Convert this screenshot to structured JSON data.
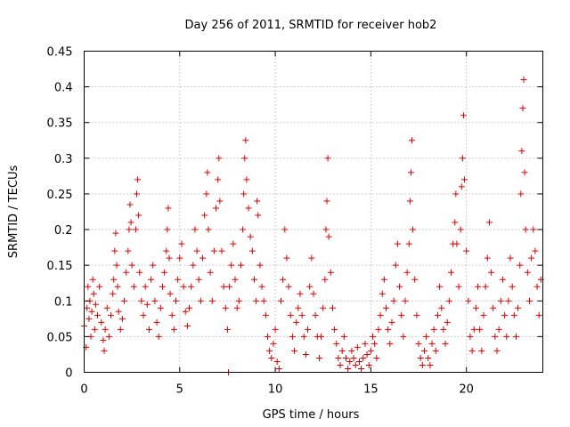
{
  "chart_data": {
    "type": "scatter",
    "title": "Day 256 of 2011, SRMTID for receiver hob2",
    "xlabel": "GPS time / hours",
    "ylabel": "SRMTID / TECUs",
    "xlim": [
      0,
      24
    ],
    "ylim": [
      0,
      0.45
    ],
    "xticks": [
      0,
      5,
      10,
      15,
      20
    ],
    "xtick_labels": [
      "0",
      "5",
      "10",
      "15",
      "20"
    ],
    "yticks": [
      0,
      0.05,
      0.1,
      0.15,
      0.2,
      0.25,
      0.3,
      0.35,
      0.4,
      0.45
    ],
    "ytick_labels": [
      "0",
      "0.05",
      "0.1",
      "0.15",
      "0.2",
      "0.25",
      "0.3",
      "0.35",
      "0.4",
      "0.45"
    ],
    "grid": true,
    "marker": "+",
    "color": "#dd0000",
    "series": [
      {
        "name": "SRMTID",
        "points": [
          [
            0.0,
            0.065
          ],
          [
            0.1,
            0.035
          ],
          [
            0.15,
            0.09
          ],
          [
            0.2,
            0.12
          ],
          [
            0.25,
            0.075
          ],
          [
            0.3,
            0.1
          ],
          [
            0.35,
            0.05
          ],
          [
            0.4,
            0.085
          ],
          [
            0.45,
            0.13
          ],
          [
            0.5,
            0.11
          ],
          [
            0.55,
            0.06
          ],
          [
            0.6,
            0.095
          ],
          [
            0.7,
            0.08
          ],
          [
            0.8,
            0.12
          ],
          [
            0.9,
            0.07
          ],
          [
            1.0,
            0.045
          ],
          [
            1.05,
            0.03
          ],
          [
            1.1,
            0.06
          ],
          [
            1.2,
            0.09
          ],
          [
            1.3,
            0.05
          ],
          [
            1.4,
            0.08
          ],
          [
            1.5,
            0.11
          ],
          [
            1.55,
            0.13
          ],
          [
            1.6,
            0.17
          ],
          [
            1.65,
            0.195
          ],
          [
            1.7,
            0.15
          ],
          [
            1.75,
            0.12
          ],
          [
            1.8,
            0.085
          ],
          [
            1.9,
            0.06
          ],
          [
            2.0,
            0.075
          ],
          [
            2.1,
            0.1
          ],
          [
            2.2,
            0.14
          ],
          [
            2.3,
            0.17
          ],
          [
            2.35,
            0.2
          ],
          [
            2.4,
            0.235
          ],
          [
            2.45,
            0.21
          ],
          [
            2.5,
            0.15
          ],
          [
            2.6,
            0.12
          ],
          [
            2.7,
            0.2
          ],
          [
            2.75,
            0.25
          ],
          [
            2.8,
            0.27
          ],
          [
            2.85,
            0.22
          ],
          [
            2.9,
            0.14
          ],
          [
            3.0,
            0.1
          ],
          [
            3.1,
            0.08
          ],
          [
            3.2,
            0.12
          ],
          [
            3.3,
            0.095
          ],
          [
            3.4,
            0.06
          ],
          [
            3.5,
            0.13
          ],
          [
            3.6,
            0.15
          ],
          [
            3.7,
            0.1
          ],
          [
            3.8,
            0.07
          ],
          [
            3.9,
            0.05
          ],
          [
            4.0,
            0.09
          ],
          [
            4.1,
            0.12
          ],
          [
            4.2,
            0.14
          ],
          [
            4.3,
            0.17
          ],
          [
            4.35,
            0.2
          ],
          [
            4.4,
            0.23
          ],
          [
            4.45,
            0.16
          ],
          [
            4.5,
            0.11
          ],
          [
            4.6,
            0.08
          ],
          [
            4.7,
            0.06
          ],
          [
            4.8,
            0.1
          ],
          [
            4.9,
            0.13
          ],
          [
            5.0,
            0.16
          ],
          [
            5.1,
            0.18
          ],
          [
            5.2,
            0.12
          ],
          [
            5.3,
            0.085
          ],
          [
            5.4,
            0.065
          ],
          [
            5.5,
            0.09
          ],
          [
            5.6,
            0.12
          ],
          [
            5.7,
            0.15
          ],
          [
            5.8,
            0.2
          ],
          [
            5.9,
            0.17
          ],
          [
            6.0,
            0.13
          ],
          [
            6.1,
            0.1
          ],
          [
            6.2,
            0.16
          ],
          [
            6.3,
            0.22
          ],
          [
            6.4,
            0.25
          ],
          [
            6.45,
            0.28
          ],
          [
            6.5,
            0.2
          ],
          [
            6.6,
            0.14
          ],
          [
            6.7,
            0.1
          ],
          [
            6.8,
            0.17
          ],
          [
            6.9,
            0.23
          ],
          [
            7.0,
            0.27
          ],
          [
            7.05,
            0.3
          ],
          [
            7.1,
            0.24
          ],
          [
            7.2,
            0.17
          ],
          [
            7.3,
            0.12
          ],
          [
            7.4,
            0.09
          ],
          [
            7.5,
            0.06
          ],
          [
            7.55,
            0.0
          ],
          [
            7.6,
            0.12
          ],
          [
            7.7,
            0.15
          ],
          [
            7.8,
            0.18
          ],
          [
            7.9,
            0.13
          ],
          [
            8.0,
            0.09
          ],
          [
            8.1,
            0.1
          ],
          [
            8.2,
            0.15
          ],
          [
            8.3,
            0.2
          ],
          [
            8.35,
            0.25
          ],
          [
            8.4,
            0.3
          ],
          [
            8.45,
            0.325
          ],
          [
            8.5,
            0.27
          ],
          [
            8.6,
            0.23
          ],
          [
            8.7,
            0.19
          ],
          [
            8.8,
            0.17
          ],
          [
            8.9,
            0.13
          ],
          [
            9.0,
            0.1
          ],
          [
            9.05,
            0.24
          ],
          [
            9.1,
            0.22
          ],
          [
            9.2,
            0.15
          ],
          [
            9.3,
            0.12
          ],
          [
            9.4,
            0.1
          ],
          [
            9.5,
            0.08
          ],
          [
            9.6,
            0.05
          ],
          [
            9.7,
            0.03
          ],
          [
            9.8,
            0.02
          ],
          [
            9.9,
            0.04
          ],
          [
            10.0,
            0.06
          ],
          [
            10.1,
            0.015
          ],
          [
            10.2,
            0.005
          ],
          [
            10.3,
            0.1
          ],
          [
            10.4,
            0.13
          ],
          [
            10.5,
            0.2
          ],
          [
            10.6,
            0.16
          ],
          [
            10.7,
            0.12
          ],
          [
            10.8,
            0.08
          ],
          [
            10.9,
            0.05
          ],
          [
            11.0,
            0.03
          ],
          [
            11.1,
            0.07
          ],
          [
            11.2,
            0.09
          ],
          [
            11.3,
            0.11
          ],
          [
            11.4,
            0.08
          ],
          [
            11.5,
            0.05
          ],
          [
            11.6,
            0.025
          ],
          [
            11.7,
            0.06
          ],
          [
            11.8,
            0.12
          ],
          [
            11.9,
            0.16
          ],
          [
            12.0,
            0.11
          ],
          [
            12.1,
            0.08
          ],
          [
            12.2,
            0.05
          ],
          [
            12.3,
            0.02
          ],
          [
            12.4,
            0.05
          ],
          [
            12.5,
            0.09
          ],
          [
            12.6,
            0.13
          ],
          [
            12.65,
            0.2
          ],
          [
            12.7,
            0.24
          ],
          [
            12.75,
            0.3
          ],
          [
            12.8,
            0.19
          ],
          [
            12.9,
            0.14
          ],
          [
            13.0,
            0.09
          ],
          [
            13.1,
            0.06
          ],
          [
            13.2,
            0.04
          ],
          [
            13.3,
            0.02
          ],
          [
            13.4,
            0.01
          ],
          [
            13.5,
            0.03
          ],
          [
            13.6,
            0.05
          ],
          [
            13.7,
            0.02
          ],
          [
            13.8,
            0.005
          ],
          [
            13.9,
            0.015
          ],
          [
            14.0,
            0.03
          ],
          [
            14.1,
            0.02
          ],
          [
            14.2,
            0.01
          ],
          [
            14.3,
            0.035
          ],
          [
            14.4,
            0.015
          ],
          [
            14.5,
            0.005
          ],
          [
            14.6,
            0.02
          ],
          [
            14.7,
            0.04
          ],
          [
            14.8,
            0.025
          ],
          [
            14.9,
            0.01
          ],
          [
            15.0,
            0.03
          ],
          [
            15.1,
            0.05
          ],
          [
            15.2,
            0.04
          ],
          [
            15.3,
            0.02
          ],
          [
            15.4,
            0.06
          ],
          [
            15.5,
            0.08
          ],
          [
            15.6,
            0.11
          ],
          [
            15.7,
            0.13
          ],
          [
            15.8,
            0.09
          ],
          [
            15.9,
            0.06
          ],
          [
            16.0,
            0.04
          ],
          [
            16.1,
            0.07
          ],
          [
            16.2,
            0.1
          ],
          [
            16.3,
            0.15
          ],
          [
            16.4,
            0.18
          ],
          [
            16.5,
            0.12
          ],
          [
            16.6,
            0.08
          ],
          [
            16.7,
            0.05
          ],
          [
            16.8,
            0.1
          ],
          [
            16.9,
            0.14
          ],
          [
            17.0,
            0.18
          ],
          [
            17.05,
            0.24
          ],
          [
            17.1,
            0.28
          ],
          [
            17.15,
            0.325
          ],
          [
            17.2,
            0.2
          ],
          [
            17.3,
            0.13
          ],
          [
            17.4,
            0.08
          ],
          [
            17.5,
            0.04
          ],
          [
            17.6,
            0.02
          ],
          [
            17.7,
            0.01
          ],
          [
            17.8,
            0.03
          ],
          [
            17.9,
            0.05
          ],
          [
            18.0,
            0.02
          ],
          [
            18.1,
            0.01
          ],
          [
            18.2,
            0.04
          ],
          [
            18.3,
            0.06
          ],
          [
            18.4,
            0.03
          ],
          [
            18.5,
            0.08
          ],
          [
            18.6,
            0.12
          ],
          [
            18.7,
            0.09
          ],
          [
            18.8,
            0.06
          ],
          [
            18.9,
            0.04
          ],
          [
            19.0,
            0.07
          ],
          [
            19.1,
            0.1
          ],
          [
            19.2,
            0.14
          ],
          [
            19.3,
            0.18
          ],
          [
            19.4,
            0.21
          ],
          [
            19.45,
            0.25
          ],
          [
            19.5,
            0.18
          ],
          [
            19.6,
            0.12
          ],
          [
            19.7,
            0.2
          ],
          [
            19.75,
            0.26
          ],
          [
            19.8,
            0.3
          ],
          [
            19.85,
            0.36
          ],
          [
            19.9,
            0.27
          ],
          [
            20.0,
            0.17
          ],
          [
            20.1,
            0.1
          ],
          [
            20.2,
            0.05
          ],
          [
            20.3,
            0.03
          ],
          [
            20.4,
            0.06
          ],
          [
            20.5,
            0.09
          ],
          [
            20.6,
            0.12
          ],
          [
            20.7,
            0.06
          ],
          [
            20.8,
            0.03
          ],
          [
            20.9,
            0.08
          ],
          [
            21.0,
            0.12
          ],
          [
            21.1,
            0.16
          ],
          [
            21.2,
            0.21
          ],
          [
            21.3,
            0.14
          ],
          [
            21.4,
            0.09
          ],
          [
            21.5,
            0.05
          ],
          [
            21.6,
            0.03
          ],
          [
            21.7,
            0.06
          ],
          [
            21.8,
            0.1
          ],
          [
            21.9,
            0.13
          ],
          [
            22.0,
            0.08
          ],
          [
            22.1,
            0.05
          ],
          [
            22.2,
            0.1
          ],
          [
            22.3,
            0.16
          ],
          [
            22.4,
            0.12
          ],
          [
            22.5,
            0.08
          ],
          [
            22.6,
            0.05
          ],
          [
            22.7,
            0.09
          ],
          [
            22.8,
            0.15
          ],
          [
            22.85,
            0.25
          ],
          [
            22.9,
            0.31
          ],
          [
            22.95,
            0.37
          ],
          [
            23.0,
            0.41
          ],
          [
            23.05,
            0.28
          ],
          [
            23.1,
            0.2
          ],
          [
            23.2,
            0.14
          ],
          [
            23.3,
            0.1
          ],
          [
            23.4,
            0.16
          ],
          [
            23.5,
            0.2
          ],
          [
            23.6,
            0.17
          ],
          [
            23.7,
            0.12
          ],
          [
            23.8,
            0.08
          ],
          [
            23.9,
            0.13
          ]
        ]
      }
    ]
  }
}
